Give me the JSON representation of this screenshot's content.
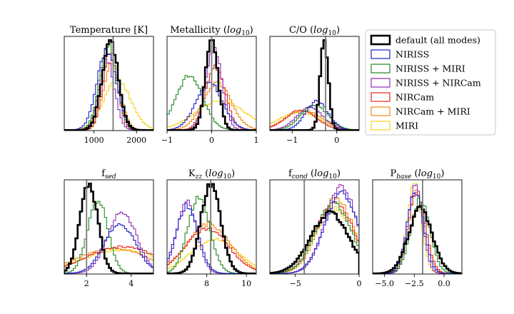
{
  "chart_data": {
    "type": "histogram-grid",
    "layout": "2 rows x 4 columns, top-right cell holds legend",
    "series": [
      {
        "key": "default",
        "name": "default (all modes)",
        "color": "#000000",
        "bold": true
      },
      {
        "key": "niriss",
        "name": "NIRISS",
        "color": "#1f1fcc"
      },
      {
        "key": "niriss_miri",
        "name": "NIRISS + MIRI",
        "color": "#1f8a1f"
      },
      {
        "key": "niriss_nircam",
        "name": "NIRISS + NIRCam",
        "color": "#8e2bb4"
      },
      {
        "key": "nircam",
        "name": "NIRCam",
        "color": "#e8261c"
      },
      {
        "key": "nircam_miri",
        "name": "NIRCam + MIRI",
        "color": "#f28a12"
      },
      {
        "key": "miri",
        "name": "MIRI",
        "color": "#f7d21e"
      }
    ],
    "panels": [
      {
        "title": "Temperature [K]",
        "xlim": [
          300,
          2400
        ],
        "xticks": [
          1000,
          2000
        ],
        "xtick_labels": [
          "1000",
          "2000"
        ],
        "truth": 1450,
        "dist": {
          "default": {
            "mu": 1380,
            "sigma": 190,
            "a": 1.0
          },
          "niriss": {
            "mu": 1300,
            "sigma": 230,
            "a": 0.88
          },
          "niriss_miri": {
            "mu": 1330,
            "sigma": 200,
            "a": 0.96
          },
          "niriss_nircam": {
            "mu": 1300,
            "sigma": 180,
            "a": 0.78
          },
          "nircam": {
            "mu": 1380,
            "sigma": 170,
            "a": 0.85
          },
          "nircam_miri": {
            "mu": 1420,
            "sigma": 200,
            "a": 0.74
          },
          "miri": {
            "mu": 1550,
            "sigma": 320,
            "a": 0.55
          }
        }
      },
      {
        "title": "Metallicity (log10)",
        "title_main": "Metallicity (",
        "title_italic": "log",
        "title_sub": "10",
        "title_close": ")",
        "xlim": [
          -1,
          1
        ],
        "xticks": [
          -1,
          0,
          1
        ],
        "xtick_labels": [
          "−1",
          "0",
          "1"
        ],
        "truth": 0.0,
        "dist": {
          "default": {
            "mu": 0.0,
            "sigma": 0.14,
            "a": 1.0
          },
          "niriss": {
            "mu": -0.05,
            "sigma": 0.3,
            "a": 0.52
          },
          "niriss_miri": {
            "mu": -0.5,
            "sigma": 0.3,
            "a": 0.6
          },
          "niriss_nircam": {
            "mu": 0.05,
            "sigma": 0.18,
            "a": 0.92
          },
          "nircam": {
            "mu": 0.08,
            "sigma": 0.22,
            "a": 0.7
          },
          "nircam_miri": {
            "mu": 0.12,
            "sigma": 0.32,
            "a": 0.52
          },
          "miri": {
            "mu": 0.2,
            "sigma": 0.55,
            "a": 0.33
          }
        }
      },
      {
        "title": "C/O (log10)",
        "title_main": "C/O (",
        "title_italic": "log",
        "title_sub": "10",
        "title_close": ")",
        "xlim": [
          -1.5,
          0.5
        ],
        "xticks": [
          -1,
          0
        ],
        "xtick_labels": [
          "−1",
          "0"
        ],
        "truth": -0.25,
        "dist": {
          "default": {
            "mu": -0.28,
            "sigma": 0.09,
            "a": 1.0
          },
          "niriss": {
            "mu": -0.45,
            "sigma": 0.25,
            "a": 0.32
          },
          "niriss_miri": {
            "mu": -0.5,
            "sigma": 0.3,
            "a": 0.28
          },
          "niriss_nircam": {
            "mu": -0.6,
            "sigma": 0.3,
            "a": 0.25
          },
          "nircam": {
            "mu": -0.8,
            "sigma": 0.35,
            "a": 0.22
          },
          "nircam_miri": {
            "mu": -0.75,
            "sigma": 0.4,
            "a": 0.22
          },
          "miri": {
            "mu": -0.85,
            "sigma": 0.45,
            "a": 0.2
          }
        }
      },
      {
        "title": "fsed",
        "title_main": "f",
        "title_italic": "sed",
        "xlim": [
          1,
          5
        ],
        "xticks": [
          2,
          4
        ],
        "xtick_labels": [
          "2",
          "4"
        ],
        "truth": 2.0,
        "dist": {
          "default": {
            "mu": 2.1,
            "sigma": 0.4,
            "a": 1.0
          },
          "niriss": {
            "mu": 3.5,
            "sigma": 0.7,
            "a": 0.55
          },
          "niriss_miri": {
            "mu": 2.5,
            "sigma": 0.45,
            "a": 0.82
          },
          "niriss_nircam": {
            "mu": 3.6,
            "sigma": 0.65,
            "a": 0.68
          },
          "nircam": {
            "mu": 3.6,
            "sigma": 1.6,
            "a": 0.3
          },
          "nircam_miri": {
            "mu": 3.2,
            "sigma": 1.6,
            "a": 0.28
          },
          "miri": {
            "mu": 3.6,
            "sigma": 1.8,
            "a": 0.26
          }
        }
      },
      {
        "title": "Kzz (log10)",
        "title_main": "K",
        "title_italic": "zz",
        "title_after": " (",
        "title_italic2": "log",
        "title_sub": "10",
        "title_close": ")",
        "xlim": [
          6,
          10.5
        ],
        "xticks": [
          8,
          10
        ],
        "xtick_labels": [
          "8",
          "10"
        ],
        "truth": 8.2,
        "dist": {
          "default": {
            "mu": 8.2,
            "sigma": 0.5,
            "a": 1.0
          },
          "niriss": {
            "mu": 7.0,
            "sigma": 0.55,
            "a": 0.75
          },
          "niriss_miri": {
            "mu": 7.6,
            "sigma": 0.55,
            "a": 0.85
          },
          "niriss_nircam": {
            "mu": 7.0,
            "sigma": 0.5,
            "a": 0.8
          },
          "nircam": {
            "mu": 8.0,
            "sigma": 1.1,
            "a": 0.5
          },
          "nircam_miri": {
            "mu": 8.1,
            "sigma": 1.1,
            "a": 0.55
          },
          "miri": {
            "mu": 8.4,
            "sigma": 1.2,
            "a": 0.38
          }
        }
      },
      {
        "title": "fcond (log10)",
        "title_main": "f",
        "title_italic": "cond",
        "title_after": " (",
        "title_italic2": "log",
        "title_sub": "10",
        "title_close": ")",
        "xlim": [
          -7,
          0
        ],
        "xticks": [
          -5,
          0
        ],
        "xtick_labels": [
          "−5",
          "0"
        ],
        "truth": -4.3,
        "dist": {
          "default": {
            "mu": -2.3,
            "sigma": 1.5,
            "a": 0.67
          },
          "niriss": {
            "mu": -1.4,
            "sigma": 1.3,
            "a": 0.9
          },
          "niriss_miri": {
            "mu": -2.0,
            "sigma": 1.4,
            "a": 0.78
          },
          "niriss_nircam": {
            "mu": -1.4,
            "sigma": 1.25,
            "a": 0.96
          },
          "nircam": {
            "mu": -1.9,
            "sigma": 1.45,
            "a": 0.8
          },
          "nircam_miri": {
            "mu": -1.8,
            "sigma": 1.4,
            "a": 0.83
          },
          "miri": {
            "mu": -2.0,
            "sigma": 1.6,
            "a": 0.72
          }
        }
      },
      {
        "title": "Pbase (log10)",
        "title_main": "P",
        "title_italic": "base",
        "title_after": " (",
        "title_italic2": "log",
        "title_sub": "10",
        "title_close": ")",
        "xlim": [
          -6,
          1.5
        ],
        "xticks": [
          -5,
          -2.5,
          0
        ],
        "xtick_labels": [
          "−5.0",
          "−2.5",
          "0.0"
        ],
        "truth": -1.8,
        "dist": {
          "default": {
            "mu": -2.0,
            "sigma": 1.0,
            "a": 0.72
          },
          "niriss": {
            "mu": -2.4,
            "sigma": 0.7,
            "a": 0.9
          },
          "niriss_miri": {
            "mu": -2.0,
            "sigma": 0.8,
            "a": 0.82
          },
          "niriss_nircam": {
            "mu": -2.4,
            "sigma": 0.6,
            "a": 0.98
          },
          "nircam": {
            "mu": -2.3,
            "sigma": 0.75,
            "a": 0.88
          },
          "nircam_miri": {
            "mu": -2.3,
            "sigma": 0.7,
            "a": 0.9
          },
          "miri": {
            "mu": -2.5,
            "sigma": 0.6,
            "a": 1.0
          }
        }
      }
    ]
  }
}
